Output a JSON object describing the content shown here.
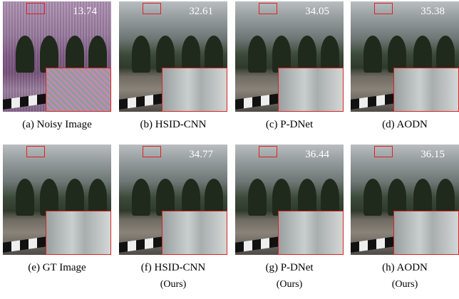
{
  "panels": [
    {
      "label": "(a)",
      "name": "Noisy Image",
      "psnr": "13.74"
    },
    {
      "label": "(b)",
      "name": "HSID-CNN",
      "psnr": "32.61"
    },
    {
      "label": "(c)",
      "name": "P-DNet",
      "psnr": "34.05"
    },
    {
      "label": "(d)",
      "name": "AODN",
      "psnr": "35.38"
    },
    {
      "label": "(e)",
      "name": "GT Image"
    },
    {
      "label": "(f)",
      "name": "HSID-CNN",
      "psnr": "34.77",
      "note": "(Ours)"
    },
    {
      "label": "(g)",
      "name": "P-DNet",
      "psnr": "36.44",
      "note": "(Ours)"
    },
    {
      "label": "(h)",
      "name": "AODN",
      "psnr": "36.15",
      "note": "(Ours)"
    }
  ]
}
